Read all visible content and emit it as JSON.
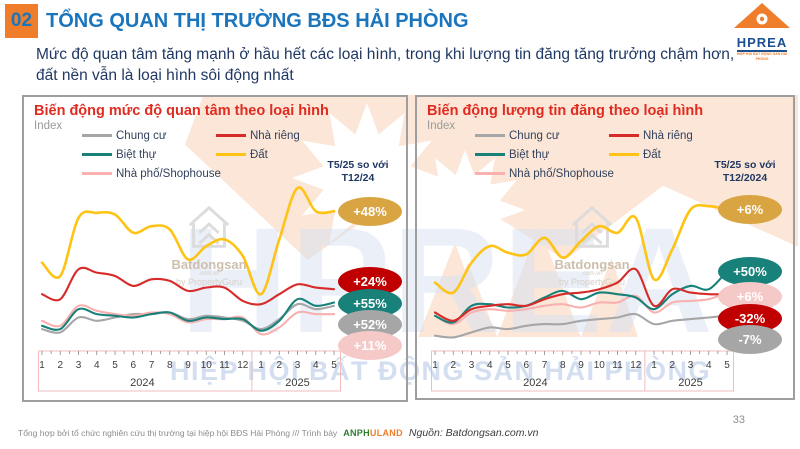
{
  "slide": {
    "number": "02",
    "title": "TỔNG QUAN THỊ TRƯỜNG BĐS HẢI PHÒNG",
    "subtitle": "Mức độ quan tâm tăng mạnh ở hầu hết các loại hình, trong khi lượng tin đăng tăng trưởng chậm hơn, đất nền vẫn là loại hình sôi động nhất",
    "page_number": "33"
  },
  "logo": {
    "text": "HPREA",
    "subtext": "HIỆP HỘI BẤT ĐỘNG SẢN HẢI PHÒNG"
  },
  "watermarks": {
    "big_text": "HPREA",
    "banner_text": "HIỆP HỘI BẤT ĐỘNG SẢN HẢI PHÒNG",
    "brand": "Batdongsan",
    "brand_domain": ".com.vn",
    "brand_by": "by PropertyGuru"
  },
  "footer": {
    "credit": "Tổng hợp bởi tổ chức nghiên cứu thị trường tại hiệp hội BĐS Hải Phòng /// Trình bày",
    "logo_part1": "ANPH",
    "logo_part2": "U",
    "logo_part3": "LAND",
    "source": "Nguồn: Batdongsan.com.vn"
  },
  "chart_data": [
    {
      "type": "line",
      "title": "Biến động mức độ quan tâm theo loại hình",
      "ylabel": "Index",
      "comparison_label": "T5/25 so với T12/24",
      "x_labels": [
        "1",
        "2",
        "3",
        "4",
        "5",
        "6",
        "7",
        "8",
        "9",
        "10",
        "11",
        "12",
        "1",
        "2",
        "3",
        "4",
        "5"
      ],
      "x_groups": [
        {
          "label": "2024",
          "span": 12
        },
        {
          "label": "2025",
          "span": 5
        }
      ],
      "ylim": [
        0,
        100
      ],
      "grid": false,
      "legend_position": "top",
      "series": [
        {
          "name": "Chung cư",
          "color": "#a6a6a6",
          "values": [
            12,
            10,
            19,
            17,
            19,
            21,
            21,
            22,
            18,
            20,
            19,
            17,
            12,
            18,
            27,
            24,
            26
          ]
        },
        {
          "name": "Nhà riêng",
          "color": "#d62b28",
          "values": [
            33,
            30,
            48,
            46,
            44,
            38,
            42,
            41,
            35,
            37,
            37,
            29,
            27,
            33,
            39,
            37,
            36
          ]
        },
        {
          "name": "Biệt thự",
          "color": "#17817a",
          "values": [
            14,
            12,
            24,
            21,
            20,
            19,
            21,
            22,
            17,
            19,
            18,
            18,
            11,
            17,
            30,
            26,
            28
          ]
        },
        {
          "name": "Đất",
          "color": "#fdc315",
          "values": [
            52,
            44,
            79,
            82,
            81,
            70,
            74,
            72,
            54,
            62,
            66,
            56,
            33,
            66,
            97,
            83,
            83
          ]
        },
        {
          "name": "Nhà phố/Shophouse",
          "color": "#f9b1b0",
          "values": [
            17,
            14,
            26,
            23,
            21,
            20,
            22,
            21,
            16,
            18,
            18,
            19,
            9,
            13,
            22,
            21,
            21
          ]
        }
      ],
      "badges": [
        {
          "series": "Đất",
          "label": "+48%",
          "color": "#d9a543"
        },
        {
          "series": "Nhà riêng",
          "label": "+24%",
          "color": "#c00000"
        },
        {
          "series": "Biệt thự",
          "label": "+55%",
          "color": "#17817a"
        },
        {
          "series": "Chung cư",
          "label": "+52%",
          "color": "#a6a6a6"
        },
        {
          "series": "Nhà phố/Shophouse",
          "label": "+11%",
          "color": "#f6c9c9"
        }
      ]
    },
    {
      "type": "line",
      "title": "Biến động lượng tin đăng theo loại hình",
      "ylabel": "Index",
      "comparison_label": "T5/25 so với T12/2024",
      "x_labels": [
        "1",
        "2",
        "3",
        "4",
        "5",
        "6",
        "7",
        "8",
        "9",
        "10",
        "11",
        "12",
        "1",
        "2",
        "3",
        "4",
        "5"
      ],
      "x_groups": [
        {
          "label": "2024",
          "span": 12
        },
        {
          "label": "2025",
          "span": 5
        }
      ],
      "ylim": [
        0,
        100
      ],
      "grid": false,
      "legend_position": "top",
      "series": [
        {
          "name": "Chung cư",
          "color": "#a6a6a6",
          "values": [
            8,
            7,
            10,
            13,
            12,
            14,
            15,
            15,
            17,
            18,
            19,
            21,
            15,
            17,
            18,
            19,
            20
          ]
        },
        {
          "name": "Nhà riêng",
          "color": "#d62b28",
          "values": [
            22,
            17,
            24,
            26,
            27,
            26,
            30,
            33,
            34,
            36,
            40,
            48,
            26,
            36,
            34,
            33,
            33
          ]
        },
        {
          "name": "Biệt thự",
          "color": "#17817a",
          "values": [
            20,
            16,
            26,
            27,
            25,
            26,
            31,
            35,
            30,
            34,
            33,
            31,
            24,
            33,
            38,
            36,
            47
          ]
        },
        {
          "name": "Đất",
          "color": "#fdc315",
          "values": [
            40,
            34,
            52,
            62,
            58,
            57,
            67,
            55,
            65,
            74,
            70,
            79,
            42,
            60,
            84,
            86,
            84
          ]
        },
        {
          "name": "Nhà phố/Shophouse",
          "color": "#f9b1b0",
          "values": [
            20,
            15,
            22,
            24,
            23,
            24,
            26,
            27,
            25,
            28,
            28,
            32,
            22,
            28,
            29,
            30,
            34
          ]
        }
      ],
      "badges": [
        {
          "series": "Đất",
          "label": "+6%",
          "color": "#d9a543"
        },
        {
          "series": "Biệt thự",
          "label": "+50%",
          "color": "#17817a"
        },
        {
          "series": "Nhà phố/Shophouse",
          "label": "+6%",
          "color": "#f6c9c9"
        },
        {
          "series": "Nhà riêng",
          "label": "-32%",
          "color": "#c00000"
        },
        {
          "series": "Chung cư",
          "label": "-7%",
          "color": "#a6a6a6"
        }
      ]
    }
  ]
}
